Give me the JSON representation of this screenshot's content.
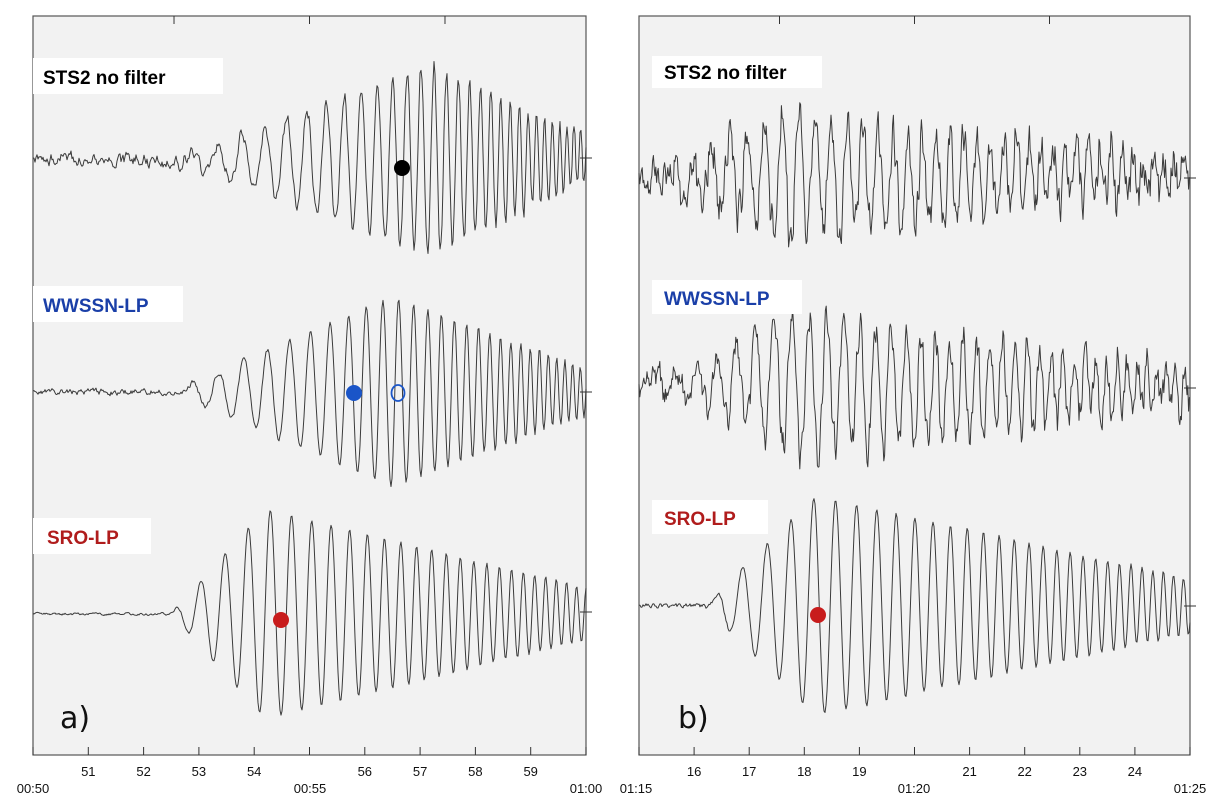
{
  "panels": [
    {
      "letter": "a)",
      "x_ticks": [
        "51",
        "52",
        "53",
        "54",
        "55",
        "56",
        "57",
        "58",
        "59"
      ],
      "corner_left": "00:50",
      "corner_mid": "00:55",
      "corner_right": "01:00",
      "traces": [
        {
          "label": "STS2 no filter",
          "label_color": "#000000"
        },
        {
          "label": "WWSSN-LP",
          "label_color": "#1a3fa8"
        },
        {
          "label": "SRO-LP",
          "label_color": "#b01c1c"
        }
      ]
    },
    {
      "letter": "b)",
      "x_ticks": [
        "16",
        "17",
        "18",
        "19",
        "21",
        "22",
        "23",
        "24"
      ],
      "corner_left": "01:15",
      "corner_mid": "01:20",
      "corner_right": "01:25",
      "traces": [
        {
          "label": "STS2 no filter",
          "label_color": "#000000"
        },
        {
          "label": "WWSSN-LP",
          "label_color": "#1a3fa8"
        },
        {
          "label": "SRO-LP",
          "label_color": "#b01c1c"
        }
      ]
    }
  ],
  "chart_data": [
    {
      "type": "line",
      "panel": "a)",
      "xlim": [
        "00:50",
        "01:00"
      ],
      "x_tick_labels": [
        "00:50",
        "51",
        "52",
        "53",
        "54",
        "00:55",
        "56",
        "57",
        "58",
        "59",
        "01:00"
      ],
      "series": [
        {
          "name": "STS2 no filter"
        },
        {
          "name": "WWSSN-LP"
        },
        {
          "name": "SRO-LP"
        }
      ],
      "markers": [
        {
          "trace": "STS2 no filter",
          "x": "00:56.6",
          "color": "#000000",
          "filled": true
        },
        {
          "trace": "WWSSN-LP",
          "x": "00:55.8",
          "color": "#1a55c8",
          "filled": true
        },
        {
          "trace": "WWSSN-LP",
          "x": "00:56.6",
          "color": "#1a55c8",
          "filled": false
        },
        {
          "trace": "SRO-LP",
          "x": "00:54.5",
          "color": "#c81c1c",
          "filled": true
        }
      ]
    },
    {
      "type": "line",
      "panel": "b)",
      "xlim": [
        "01:15",
        "01:25"
      ],
      "x_tick_labels": [
        "01:15",
        "16",
        "17",
        "18",
        "19",
        "01:20",
        "21",
        "22",
        "23",
        "24",
        "01:25"
      ],
      "series": [
        {
          "name": "STS2 no filter"
        },
        {
          "name": "WWSSN-LP"
        },
        {
          "name": "SRO-LP"
        }
      ],
      "markers": [
        {
          "trace": "SRO-LP",
          "x": "01:18.3",
          "color": "#c81c1c",
          "filled": true
        }
      ]
    }
  ]
}
